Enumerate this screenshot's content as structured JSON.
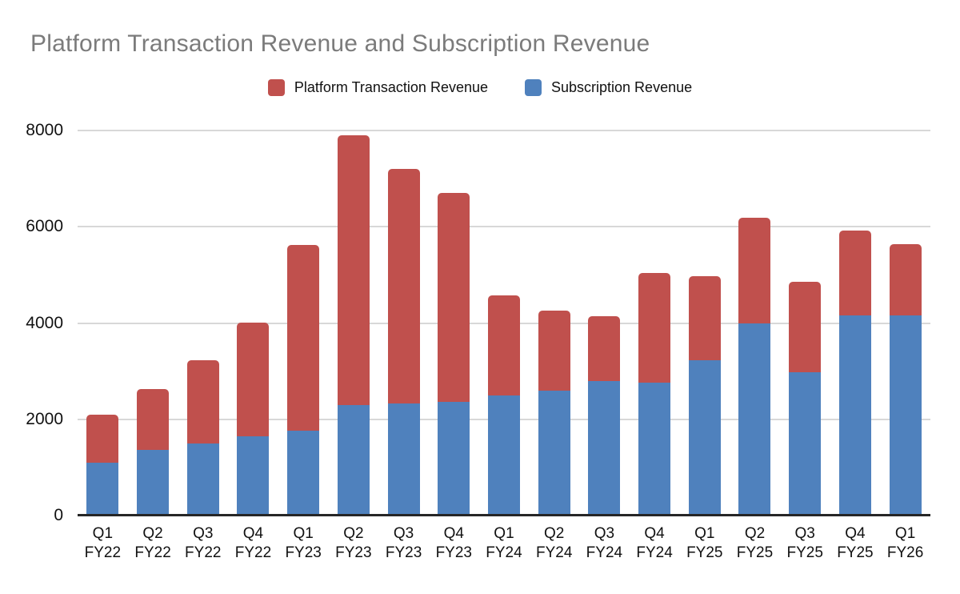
{
  "title": "Platform Transaction Revenue and Subscription Revenue",
  "legend": [
    {
      "label": "Platform Transaction Revenue",
      "color": "#c0504d"
    },
    {
      "label": "Subscription Revenue",
      "color": "#4f81bd"
    }
  ],
  "colors": {
    "platform_red": "#c0504d",
    "subscription_blue": "#4f81bd",
    "title_gray": "#7b7b7b",
    "gridline_gray": "#d8d8d8",
    "axis_dark": "#262626"
  },
  "chart_data": {
    "type": "bar",
    "stacked": true,
    "title": "Platform Transaction Revenue and Subscription Revenue",
    "xlabel": "",
    "ylabel": "",
    "ylim": [
      0,
      8000
    ],
    "yticks": [
      0,
      2000,
      4000,
      6000,
      8000
    ],
    "grid": true,
    "legend_position": "top",
    "categories": [
      "Q1 FY22",
      "Q2 FY22",
      "Q3 FY22",
      "Q4 FY22",
      "Q1 FY23",
      "Q2 FY23",
      "Q3 FY23",
      "Q4 FY23",
      "Q1 FY24",
      "Q2 FY24",
      "Q3 FY24",
      "Q4 FY24",
      "Q1 FY25",
      "Q2 FY25",
      "Q3 FY25",
      "Q4 FY25",
      "Q1 FY26"
    ],
    "series": [
      {
        "name": "Subscription Revenue",
        "color": "#4f81bd",
        "values": [
          1100,
          1360,
          1500,
          1640,
          1770,
          2300,
          2330,
          2360,
          2500,
          2590,
          2790,
          2760,
          3220,
          3990,
          2980,
          4150,
          4150
        ]
      },
      {
        "name": "Platform Transaction Revenue",
        "color": "#c0504d",
        "values": [
          1000,
          1260,
          1720,
          2370,
          3850,
          5600,
          4870,
          4350,
          2070,
          1660,
          1350,
          2280,
          1760,
          2190,
          1870,
          1770,
          1490
        ]
      }
    ],
    "stack_totals": [
      2100,
      2620,
      3220,
      4010,
      5620,
      7900,
      7200,
      6710,
      4570,
      4250,
      4140,
      5040,
      4980,
      6180,
      4850,
      5920,
      5640
    ]
  }
}
